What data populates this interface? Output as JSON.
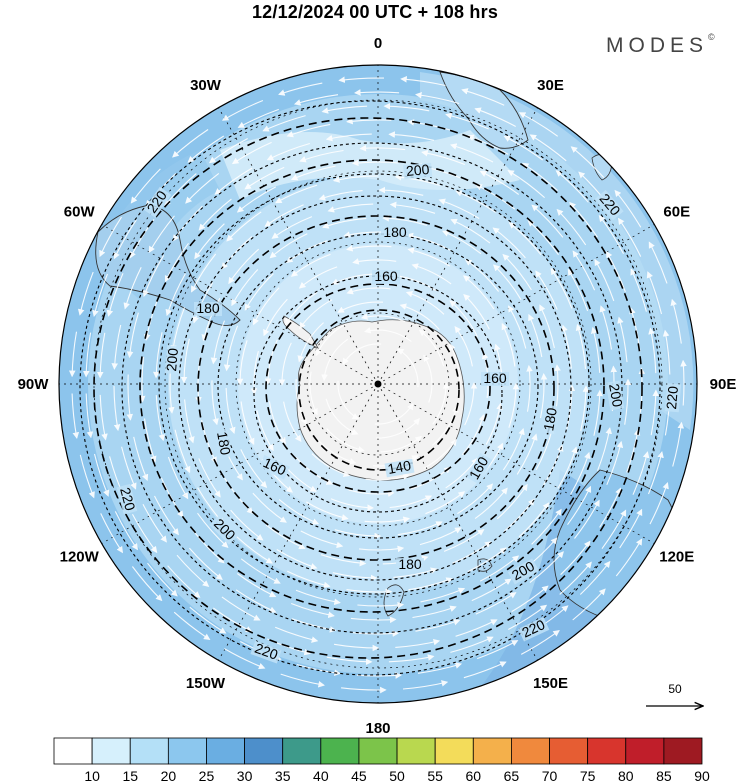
{
  "title": "12/12/2024  00 UTC  + 108 hrs",
  "brand": "MODES",
  "brand_mark": "©",
  "longitude_labels": [
    {
      "text": "0",
      "lon": 0
    },
    {
      "text": "30E",
      "lon": 30
    },
    {
      "text": "60E",
      "lon": 60
    },
    {
      "text": "90E",
      "lon": 90
    },
    {
      "text": "120E",
      "lon": 120
    },
    {
      "text": "150E",
      "lon": 150
    },
    {
      "text": "180",
      "lon": 180
    },
    {
      "text": "150W",
      "lon": -150
    },
    {
      "text": "120W",
      "lon": -120
    },
    {
      "text": "90W",
      "lon": -90
    },
    {
      "text": "60W",
      "lon": -60
    },
    {
      "text": "30W",
      "lon": -30
    }
  ],
  "contours": [
    {
      "value": 140,
      "labels": [
        "140"
      ]
    },
    {
      "value": 160,
      "labels": [
        "160",
        "160",
        "160",
        "160"
      ]
    },
    {
      "value": 180,
      "labels": [
        "180",
        "180",
        "180",
        "180",
        "180"
      ]
    },
    {
      "value": 200,
      "labels": [
        "200",
        "200",
        "200",
        "200",
        "200"
      ]
    },
    {
      "value": 220,
      "labels": [
        "220",
        "220",
        "220",
        "220",
        "220",
        "220"
      ]
    }
  ],
  "reference_vector": {
    "label": "50"
  },
  "colorbar": {
    "ticks": [
      "10",
      "15",
      "20",
      "25",
      "30",
      "35",
      "40",
      "45",
      "50",
      "55",
      "60",
      "65",
      "70",
      "75",
      "80",
      "85",
      "90"
    ],
    "colors": [
      "#ffffff",
      "#d6f0fc",
      "#b4e0f7",
      "#8cc7ee",
      "#6aaee2",
      "#4d8fcb",
      "#3d9a8a",
      "#4cb34e",
      "#7cc44a",
      "#b9d84f",
      "#f3dc5a",
      "#f4b04b",
      "#f0893d",
      "#e65d33",
      "#d8352d",
      "#c01e2a",
      "#9e1a22"
    ]
  },
  "colors": {
    "ocean_light": "#c8e6f8",
    "ocean_mid": "#a9d5f2",
    "ocean_dark": "#8cc4ec",
    "antarctica": "#f2f2f2",
    "graticule": "#000000"
  }
}
